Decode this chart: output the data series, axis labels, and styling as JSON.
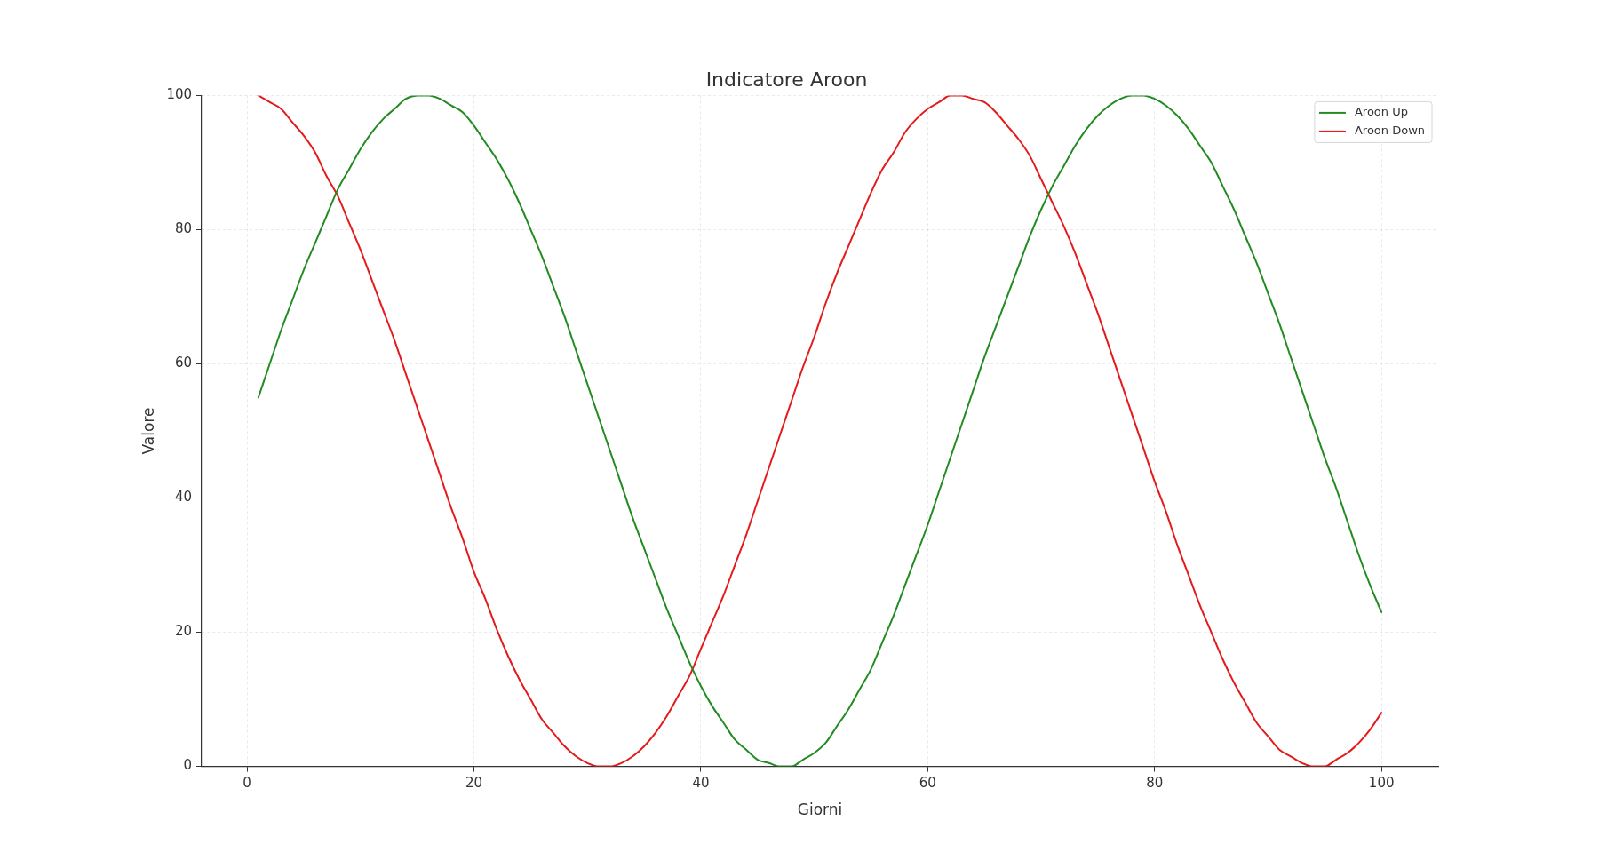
{
  "chart_data": {
    "type": "line",
    "title": "Indicatore Aroon",
    "xlabel": "Giorni",
    "ylabel": "Valore",
    "x": [
      1,
      2,
      3,
      4,
      5,
      6,
      7,
      8,
      9,
      10,
      11,
      12,
      13,
      14,
      15,
      16,
      17,
      18,
      19,
      20,
      21,
      22,
      23,
      24,
      25,
      26,
      27,
      28,
      29,
      30,
      31,
      32,
      33,
      34,
      35,
      36,
      37,
      38,
      39,
      40,
      41,
      42,
      43,
      44,
      45,
      46,
      47,
      48,
      49,
      50,
      51,
      52,
      53,
      54,
      55,
      56,
      57,
      58,
      59,
      60,
      61,
      62,
      63,
      64,
      65,
      66,
      67,
      68,
      69,
      70,
      71,
      72,
      73,
      74,
      75,
      76,
      77,
      78,
      79,
      80,
      81,
      82,
      83,
      84,
      85,
      86,
      87,
      88,
      89,
      90,
      91,
      92,
      93,
      94,
      95,
      96,
      97,
      98,
      99,
      100
    ],
    "series": [
      {
        "name": "Aroon Up",
        "color": "#228b22",
        "values": [
          55,
          60,
          65,
          69.5,
          74,
          78,
          82,
          86,
          89,
          92,
          94.5,
          96.5,
          98,
          99.5,
          100,
          100,
          99.5,
          98.5,
          97.5,
          95.5,
          93,
          90.5,
          87.5,
          84,
          80,
          76,
          71.5,
          67,
          62,
          57,
          52,
          47,
          42,
          37,
          32.5,
          28,
          23.5,
          19.5,
          15.5,
          12,
          9,
          6.5,
          4,
          2.5,
          1,
          0.5,
          0,
          0,
          1,
          2,
          3.5,
          6,
          8.5,
          11.5,
          14.5,
          18.5,
          22.5,
          27,
          31.5,
          36,
          41,
          46,
          51,
          56,
          61,
          65.5,
          70,
          74.5,
          79,
          83,
          86.5,
          89.5,
          92.5,
          95,
          97,
          98.5,
          99.5,
          100,
          100,
          99.5,
          98.5,
          97,
          95,
          92.5,
          90,
          86.5,
          83,
          79,
          75,
          70.5,
          66,
          61,
          56,
          51,
          46,
          41.5,
          36.5,
          31.5,
          27,
          23
        ]
      },
      {
        "name": "Aroon Down",
        "color": "#e41a1c",
        "values": [
          100,
          99,
          98,
          96,
          94,
          91.5,
          88,
          85,
          81,
          77,
          72.5,
          68,
          63.5,
          58.5,
          53.5,
          48.5,
          43.5,
          38.5,
          34,
          29,
          25,
          20.5,
          16.5,
          13,
          10,
          7,
          5,
          3,
          1.5,
          0.5,
          0,
          0,
          0.5,
          1.5,
          3,
          5,
          7.5,
          10.5,
          13.5,
          17.5,
          21.5,
          25.5,
          30,
          34.5,
          39.5,
          44.5,
          49.5,
          54.5,
          59.5,
          64,
          69,
          73.5,
          77.5,
          81.5,
          85.5,
          89,
          91.5,
          94.5,
          96.5,
          98,
          99,
          100,
          100,
          99.5,
          99,
          97.5,
          95.5,
          93.5,
          91,
          87.5,
          84,
          80.5,
          76.5,
          72,
          67.5,
          62.5,
          57.5,
          52.5,
          47.5,
          42.5,
          38,
          33,
          28.5,
          24,
          20,
          16,
          12.5,
          9.5,
          6.5,
          4.5,
          2.5,
          1.5,
          0.5,
          0,
          0,
          1,
          2,
          3.5,
          5.5,
          8
        ]
      }
    ],
    "xlim": [
      -4,
      105
    ],
    "xticks": [
      0,
      20,
      40,
      60,
      80,
      100
    ],
    "ylim": [
      0,
      100
    ],
    "yticks": [
      0,
      20,
      40,
      60,
      80,
      100
    ],
    "grid": true,
    "legend": "top right"
  }
}
